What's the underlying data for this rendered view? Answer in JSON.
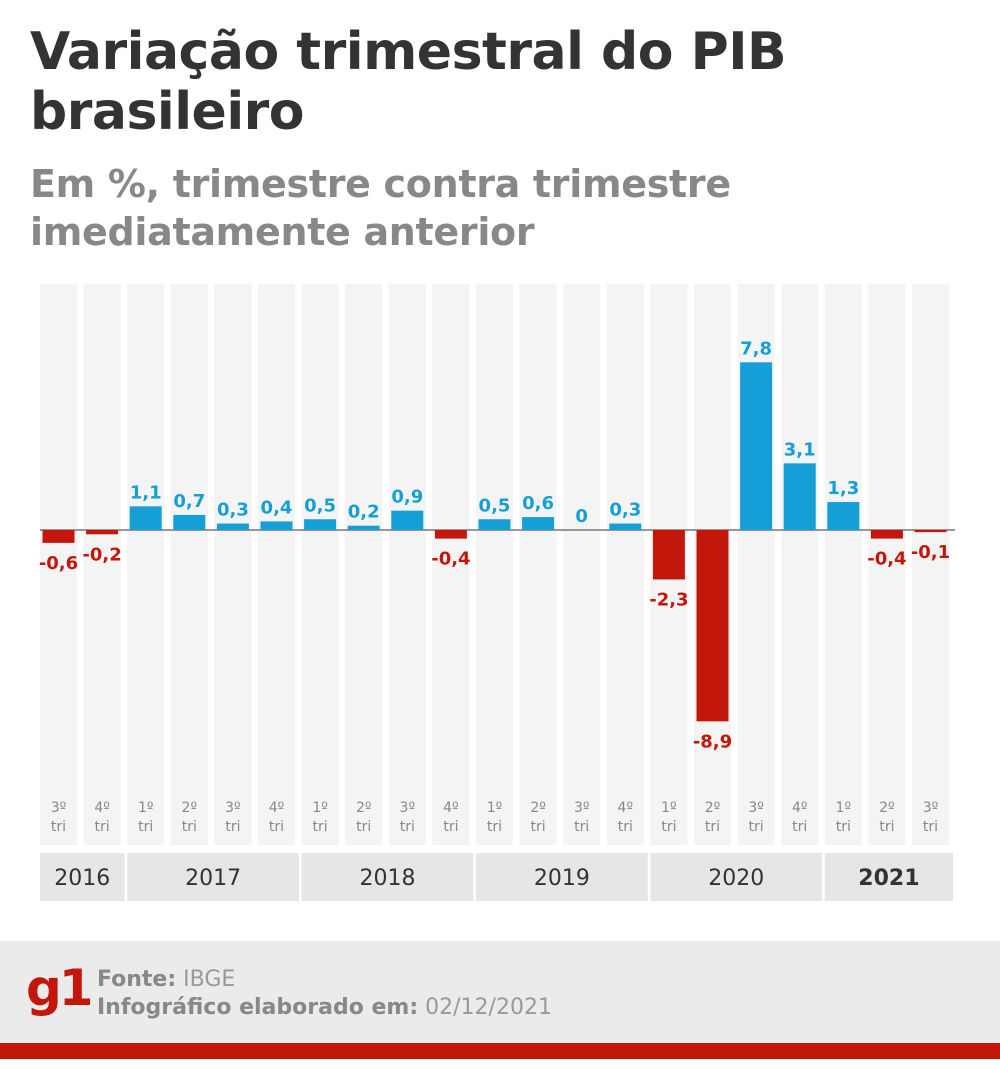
{
  "header": {
    "title": "Variação trimestral do PIB brasileiro",
    "subtitle": "Em %, trimestre contra trimestre imediatamente anterior"
  },
  "chart_data": {
    "type": "bar",
    "title": "Variação trimestral do PIB brasileiro",
    "subtitle": "Em %, trimestre contra trimestre imediatamente anterior",
    "categories": [
      {
        "q": "3º",
        "t": "tri"
      },
      {
        "q": "4º",
        "t": "tri"
      },
      {
        "q": "1º",
        "t": "tri"
      },
      {
        "q": "2º",
        "t": "tri"
      },
      {
        "q": "3º",
        "t": "tri"
      },
      {
        "q": "4º",
        "t": "tri"
      },
      {
        "q": "1º",
        "t": "tri"
      },
      {
        "q": "2º",
        "t": "tri"
      },
      {
        "q": "3º",
        "t": "tri"
      },
      {
        "q": "4º",
        "t": "tri"
      },
      {
        "q": "1º",
        "t": "tri"
      },
      {
        "q": "2º",
        "t": "tri"
      },
      {
        "q": "3º",
        "t": "tri"
      },
      {
        "q": "4º",
        "t": "tri"
      },
      {
        "q": "1º",
        "t": "tri"
      },
      {
        "q": "2º",
        "t": "tri"
      },
      {
        "q": "3º",
        "t": "tri"
      },
      {
        "q": "4º",
        "t": "tri"
      },
      {
        "q": "1º",
        "t": "tri"
      },
      {
        "q": "2º",
        "t": "tri"
      },
      {
        "q": "3º",
        "t": "tri"
      }
    ],
    "values": [
      -0.6,
      -0.2,
      1.1,
      0.7,
      0.3,
      0.4,
      0.5,
      0.2,
      0.9,
      -0.4,
      0.5,
      0.6,
      0,
      0.3,
      -2.3,
      -8.9,
      7.8,
      3.1,
      1.3,
      -0.4,
      -0.1
    ],
    "labels": [
      "-0,6",
      "-0,2",
      "1,1",
      "0,7",
      "0,3",
      "0,4",
      "0,5",
      "0,2",
      "0,9",
      "-0,4",
      "0,5",
      "0,6",
      "0",
      "0,3",
      "-2,3",
      "-8,9",
      "7,8",
      "3,1",
      "1,3",
      "-0,4",
      "-0,1"
    ],
    "years": [
      {
        "label": "2016",
        "start": 0,
        "count": 2,
        "bold": false
      },
      {
        "label": "2017",
        "start": 2,
        "count": 4,
        "bold": false
      },
      {
        "label": "2018",
        "start": 6,
        "count": 4,
        "bold": false
      },
      {
        "label": "2019",
        "start": 10,
        "count": 4,
        "bold": false
      },
      {
        "label": "2020",
        "start": 14,
        "count": 4,
        "bold": false
      },
      {
        "label": "2021",
        "start": 18,
        "count": 3,
        "bold": true
      }
    ],
    "ylim": [
      -9,
      8
    ],
    "colors": {
      "positive": "#159fd6",
      "negative": "#c4170c",
      "column": "#f4f4f4",
      "year_box": "#e6e6e6",
      "baseline": "#777777"
    },
    "grid": false,
    "legend": "none"
  },
  "footer": {
    "logo": "g1",
    "source_label": "Fonte:",
    "source_value": "IBGE",
    "date_label": "Infográfico elaborado em:",
    "date_value": "02/12/2021"
  }
}
